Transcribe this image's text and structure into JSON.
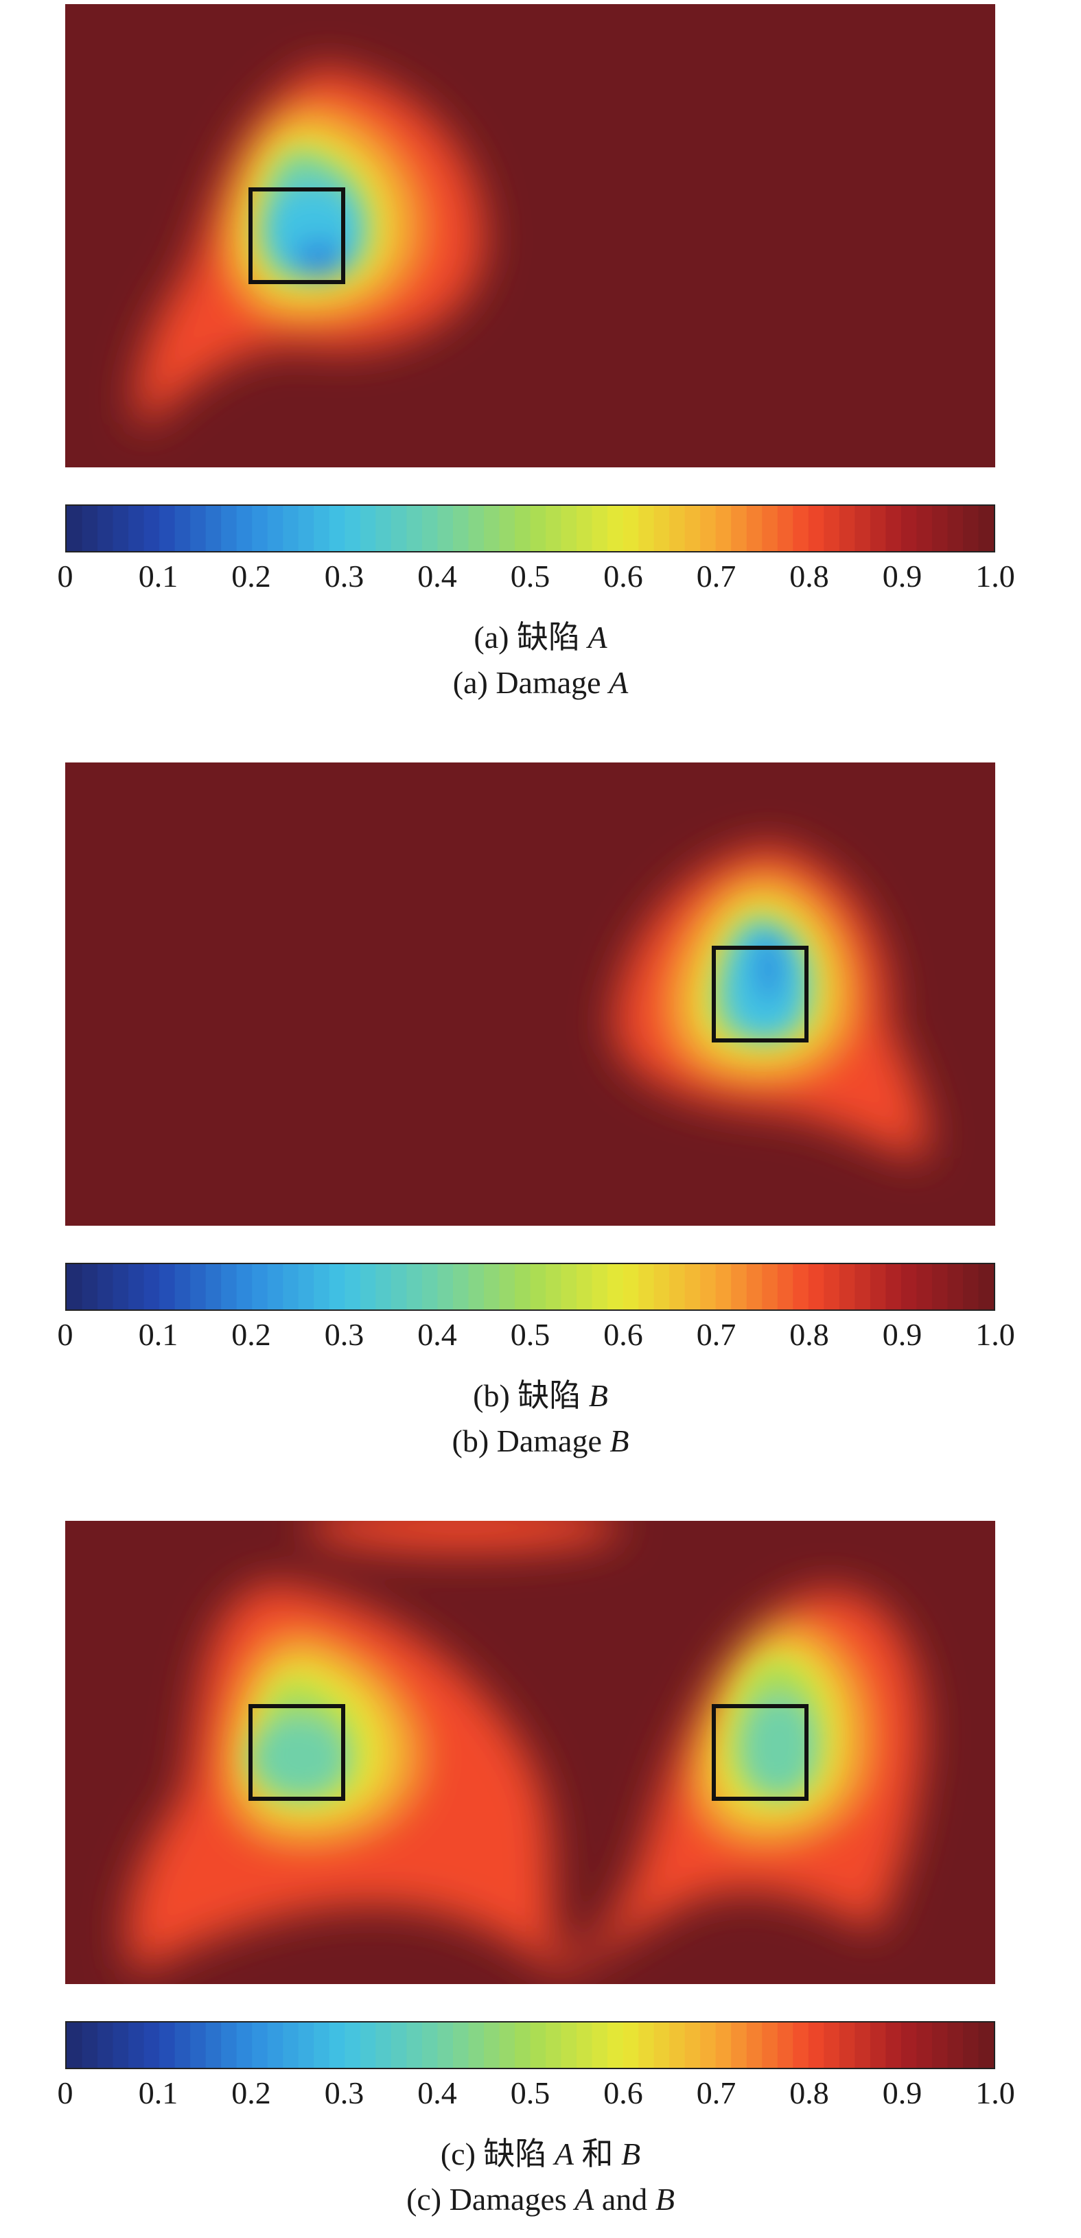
{
  "colormap": {
    "name": "jet-like",
    "stops": [
      "#1f2a6e",
      "#2349b3",
      "#2f8fe0",
      "#42c3e3",
      "#6fd1a8",
      "#a7dc56",
      "#e8e834",
      "#f7a934",
      "#f24a2a",
      "#a81f23",
      "#6c1a1e"
    ],
    "background": "#6e1a1f"
  },
  "colorbar": {
    "range": [
      0,
      1.0
    ],
    "tick_labels": [
      "0",
      "0.1",
      "0.2",
      "0.3",
      "0.4",
      "0.5",
      "0.6",
      "0.7",
      "0.8",
      "0.9",
      "1.0"
    ],
    "tick_values": [
      0,
      0.1,
      0.2,
      0.3,
      0.4,
      0.5,
      0.6,
      0.7,
      0.8,
      0.9,
      1.0
    ]
  },
  "panels": [
    {
      "caption_cn_prefix": "(a) 缺陷 ",
      "caption_cn_var": "A",
      "caption_cn_mid": "",
      "caption_cn_var2": "",
      "caption_en_prefix": "(a) Damage ",
      "caption_en_var": "A",
      "caption_en_mid": "",
      "caption_en_var2": ""
    },
    {
      "caption_cn_prefix": "(b) 缺陷 ",
      "caption_cn_var": "B",
      "caption_cn_mid": "",
      "caption_cn_var2": "",
      "caption_en_prefix": "(b) Damage ",
      "caption_en_var": "B",
      "caption_en_mid": "",
      "caption_en_var2": ""
    },
    {
      "caption_cn_prefix": "(c) 缺陷 ",
      "caption_cn_var": "A",
      "caption_cn_mid": " 和 ",
      "caption_cn_var2": "B",
      "caption_en_prefix": "(c) Damages ",
      "caption_en_var": "A",
      "caption_en_mid": " and ",
      "caption_en_var2": "B"
    }
  ],
  "chart_data": [
    {
      "type": "heatmap",
      "title": "(a) Damage A",
      "value_range": [
        0,
        1.0
      ],
      "damage_boxes": [
        {
          "label": "A",
          "x": [
            0.2,
            0.3
          ],
          "y": [
            0.4,
            0.6
          ]
        }
      ],
      "field": [
        {
          "x": 0.25,
          "y": 0.5,
          "min_value": 0.2
        },
        {
          "x": 0.08,
          "y": 0.12,
          "min_value": 0.8
        }
      ],
      "background_value": 1.0
    },
    {
      "type": "heatmap",
      "title": "(b) Damage B",
      "value_range": [
        0,
        1.0
      ],
      "damage_boxes": [
        {
          "label": "B",
          "x": [
            0.7,
            0.8
          ],
          "y": [
            0.4,
            0.6
          ]
        }
      ],
      "field": [
        {
          "x": 0.75,
          "y": 0.5,
          "min_value": 0.25
        },
        {
          "x": 0.88,
          "y": 0.18,
          "min_value": 0.85
        }
      ],
      "background_value": 1.0
    },
    {
      "type": "heatmap",
      "title": "(c) Damages A and B",
      "value_range": [
        0,
        1.0
      ],
      "damage_boxes": [
        {
          "label": "A",
          "x": [
            0.2,
            0.3
          ],
          "y": [
            0.4,
            0.6
          ]
        },
        {
          "label": "B",
          "x": [
            0.7,
            0.8
          ],
          "y": [
            0.4,
            0.6
          ]
        }
      ],
      "field": [
        {
          "x": 0.25,
          "y": 0.5,
          "min_value": 0.35
        },
        {
          "x": 0.75,
          "y": 0.52,
          "min_value": 0.45
        },
        {
          "x": 0.5,
          "y": 0.2,
          "min_value": 0.85
        },
        {
          "x": 0.08,
          "y": 0.12,
          "min_value": 0.85
        }
      ],
      "background_value": 1.0
    }
  ]
}
